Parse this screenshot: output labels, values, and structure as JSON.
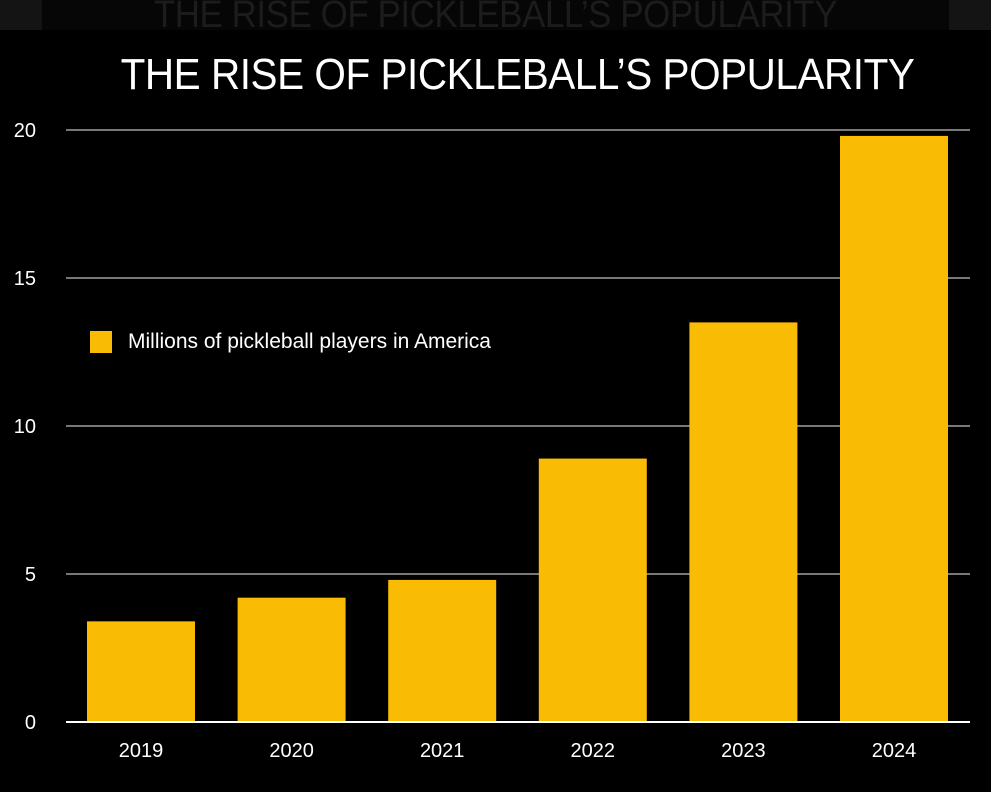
{
  "header": {
    "ghost_title": "THE RISE OF PICKLEBALL’S POPULARITY"
  },
  "colors": {
    "background": "#000000",
    "bar": "#f9bb03",
    "gridline": "#bfbfbf",
    "axis": "#ffffff",
    "text": "#ffffff"
  },
  "chart_data": {
    "type": "bar",
    "title": "THE RISE OF PICKLEBALL’S POPULARITY",
    "xlabel": "",
    "ylabel": "",
    "categories": [
      "2019",
      "2020",
      "2021",
      "2022",
      "2023",
      "2024"
    ],
    "series": [
      {
        "name": "Millions of pickleball players in America",
        "values": [
          3.4,
          4.2,
          4.8,
          8.9,
          13.5,
          19.8
        ]
      }
    ],
    "ylim": [
      0,
      20
    ],
    "yticks": [
      "0",
      "5",
      "10",
      "15",
      "20"
    ],
    "ytick_values": [
      0,
      5,
      10,
      15,
      20
    ],
    "grid": true,
    "legend_position": "upper-left"
  }
}
